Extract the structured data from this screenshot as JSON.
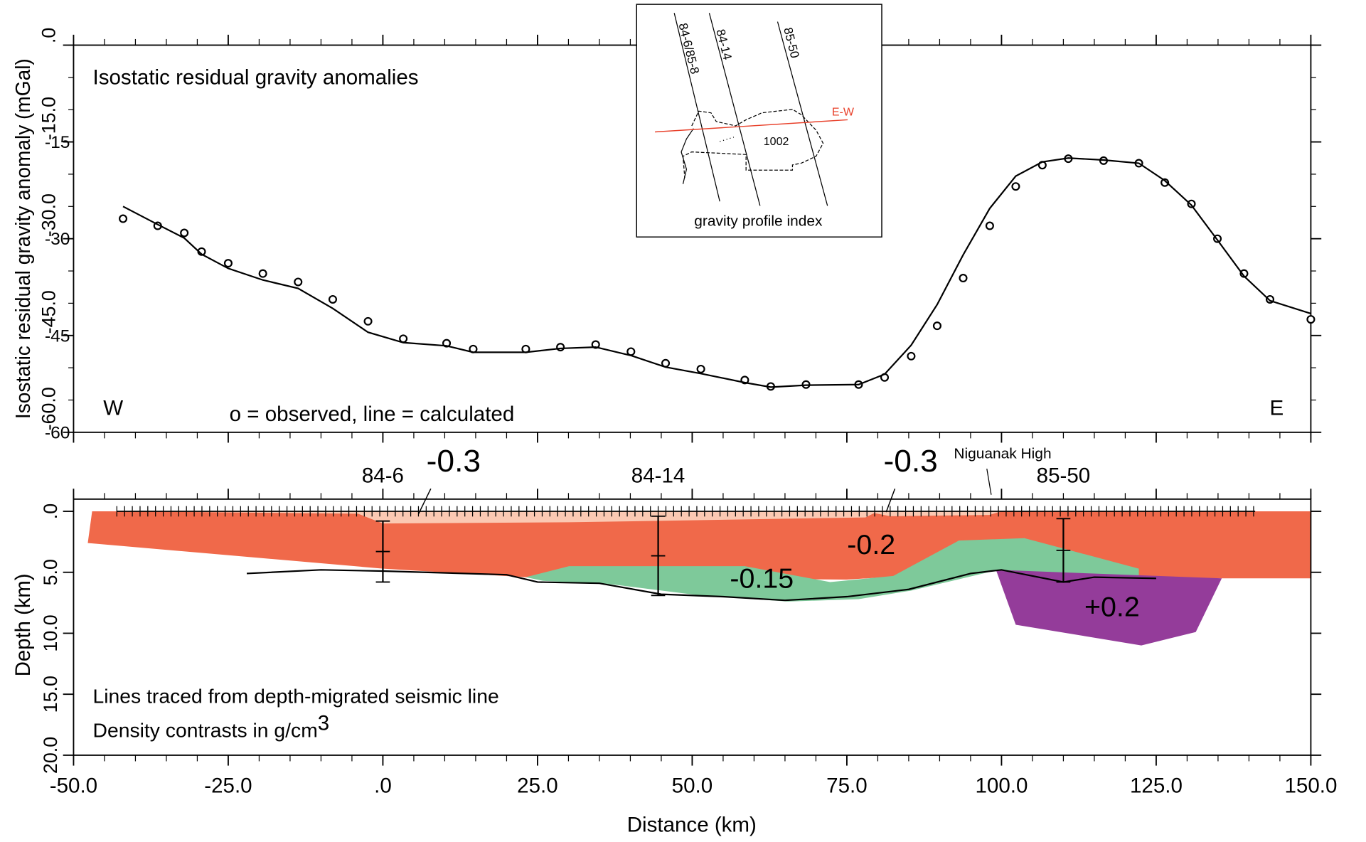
{
  "chart_data": [
    {
      "type": "line-scatter",
      "title": "Isostatic residual gravity anomalies",
      "ylabel": "Isostatic residual gravity anomaly (mGal)",
      "west_label": "W",
      "east_label": "E",
      "note": "o = observed, line = calculated",
      "xlim": [
        -50,
        150
      ],
      "ylim": [
        -60,
        0
      ],
      "yticks": [
        {
          "value": 0,
          "label": ".0"
        },
        {
          "value": -15,
          "label": "-15.0"
        },
        {
          "value": -30,
          "label": "-30.0"
        },
        {
          "value": -45,
          "label": "-45.0"
        },
        {
          "value": -60,
          "label": "-60.0"
        }
      ],
      "yticks_secondary": [
        -15,
        -30,
        -45,
        -60
      ],
      "x": [
        -42,
        -36.4,
        -32.1,
        -29.3,
        -25,
        -19.4,
        -13.7,
        -8.1,
        -2.4,
        3.3,
        10.3,
        14.6,
        23.1,
        28.7,
        34.4,
        40.1,
        45.7,
        51.4,
        58.5,
        62.7,
        68.4,
        76.9,
        81.1,
        85.4,
        89.6,
        93.8,
        98.1,
        102.3,
        106.6,
        110.8,
        116.5,
        122.2,
        126.4,
        130.7,
        134.9,
        139.2,
        143.4,
        150
      ],
      "series": [
        {
          "marker": "circle",
          "color": "#000000",
          "values": [
            -26.9,
            -28,
            -29.1,
            -32,
            -33.8,
            -35.4,
            -36.7,
            -39.4,
            -42.8,
            -45.5,
            -46.2,
            -47.1,
            -47.1,
            -46.8,
            -46.4,
            -47.5,
            -49.3,
            -50.2,
            -51.9,
            -52.9,
            -52.6,
            -52.6,
            -51.5,
            -48.2,
            -43.5,
            -36.1,
            -28,
            -21.9,
            -18.6,
            -17.6,
            -17.9,
            -18.3,
            -21.3,
            -24.6,
            -30,
            -35.4,
            -39.4,
            -42.5
          ]
        },
        {
          "marker": "line",
          "color": "#000000",
          "values": [
            -25,
            -27.8,
            -29.9,
            -32.4,
            -34.6,
            -36.4,
            -37.7,
            -40.8,
            -44.5,
            -46.1,
            -46.6,
            -47.6,
            -47.6,
            -47,
            -46.8,
            -48.1,
            -49.9,
            -50.9,
            -52.3,
            -53,
            -52.7,
            -52.6,
            -51,
            -46.5,
            -40.2,
            -32.5,
            -25.3,
            -20.3,
            -18.1,
            -17.5,
            -17.8,
            -18.3,
            -21,
            -24.8,
            -30.2,
            -35.8,
            -39.6,
            -41.6
          ]
        }
      ]
    },
    {
      "type": "section",
      "ylabel": "Depth (km)",
      "xlabel": "Distance (km)",
      "note_line1": "Lines traced from depth-migrated seismic line",
      "note_line2": "Density contrasts in g/cm",
      "note_power": "3",
      "highlight": "Niguanak High",
      "xlim": [
        -50,
        150
      ],
      "ylim": [
        -1,
        20
      ],
      "xticks": [
        {
          "value": -50,
          "label": "-50.0"
        },
        {
          "value": -25,
          "label": "-25.0"
        },
        {
          "value": 0,
          "label": ".0"
        },
        {
          "value": 25,
          "label": "25.0"
        },
        {
          "value": 50,
          "label": "50.0"
        },
        {
          "value": 75,
          "label": "75.0"
        },
        {
          "value": 100,
          "label": "100.0"
        },
        {
          "value": 125,
          "label": "125.0"
        },
        {
          "value": 150,
          "label": "150.0"
        }
      ],
      "yticks": [
        {
          "value": 0,
          "label": ".0"
        },
        {
          "value": 5,
          "label": "5.0"
        },
        {
          "value": 10,
          "label": "10.0"
        },
        {
          "value": 15,
          "label": "15.0"
        },
        {
          "value": 20,
          "label": "20.0"
        }
      ],
      "bodies": [
        {
          "label": "-0.2",
          "color": "#f0694a",
          "x": [
            -47.7,
            -47,
            150,
            150,
            122,
            100,
            75,
            23,
            0
          ],
          "y": [
            2.6,
            0,
            0,
            5.5,
            5.5,
            4.8,
            5.6,
            5.4,
            4.7
          ]
        },
        {
          "label": "-0.3",
          "color": "#fbc9b3",
          "x": [
            -42,
            80,
            78,
            30,
            0,
            -4
          ],
          "y": [
            0,
            0,
            0.5,
            0.9,
            1,
            0.2
          ]
        },
        {
          "label": "-0.3",
          "color": "#fbc9b3",
          "x": [
            78,
            100,
            98,
            82
          ],
          "y": [
            0,
            0,
            0.3,
            0.4
          ]
        },
        {
          "label": "-0.15",
          "color": "#7ec99a",
          "x": [
            23.1,
            30.1,
            58.5,
            72.3,
            82.5,
            93.1,
            103.7,
            122.2,
            122.2,
            113.7,
            99.5,
            85.4,
            76.9,
            65.5,
            51.4,
            37.2,
            25.9
          ],
          "y": [
            5.4,
            4.5,
            4.5,
            5.8,
            5.3,
            2.4,
            2.2,
            4.7,
            5.5,
            5.5,
            4.8,
            6.5,
            7.2,
            7.4,
            6.9,
            6,
            5.7
          ]
        },
        {
          "label": "+0.2",
          "color": "#943c9a",
          "x": [
            99.1,
            135.6,
            131.4,
            122.6,
            102.3
          ],
          "y": [
            4.8,
            5.5,
            9.9,
            11,
            9.3
          ]
        }
      ],
      "horizon": {
        "x": [
          -22,
          -10,
          0,
          20,
          25,
          35,
          45,
          55,
          65,
          75,
          85,
          95,
          100,
          110,
          115,
          125
        ],
        "y": [
          5.1,
          4.8,
          4.9,
          5.2,
          5.8,
          5.9,
          6.8,
          7,
          7.3,
          7,
          6.4,
          5.1,
          4.8,
          5.8,
          5.4,
          5.5
        ]
      },
      "wells": [
        {
          "name": "84-6",
          "x": 0,
          "top": 0.8,
          "bottom": 5.8
        },
        {
          "name": "84-14",
          "x": 44.5,
          "top": 0.4,
          "bottom": 6.9
        },
        {
          "name": "85-50",
          "x": 110,
          "top": 0.6,
          "bottom": 5.8
        }
      ]
    }
  ],
  "inset": {
    "caption": "gravity profile index",
    "line_a": "84-6/85-8",
    "line_b": "84-14",
    "line_c": "85-50",
    "profile": "E-W",
    "area": "1002"
  }
}
